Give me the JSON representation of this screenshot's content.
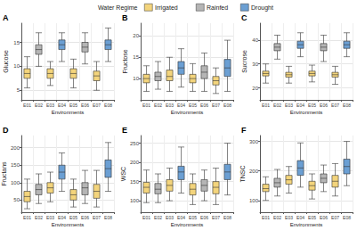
{
  "legend_title": "Water Regime",
  "groups": [
    {
      "name": "Irrigated",
      "color": "#f3d47c"
    },
    {
      "name": "Rainfed",
      "color": "#b5b5b5"
    },
    {
      "name": "Drought",
      "color": "#6b9fd3"
    }
  ],
  "chart_data": [
    {
      "type": "boxplot",
      "title": "A",
      "y_label": "Glucose",
      "x_label": "Environments",
      "grid": true,
      "categories": [
        "E01",
        "E02",
        "E03",
        "E04",
        "E05",
        "E06",
        "E07",
        "E08"
      ],
      "colors": [
        "#f3d47c",
        "#b5b5b5",
        "#f3d47c",
        "#6b9fd3",
        "#f3d47c",
        "#b5b5b5",
        "#f3d47c",
        "#6b9fd3"
      ],
      "values": [
        [
          5.5,
          7.5,
          8.5,
          9.5,
          12
        ],
        [
          10,
          12.5,
          13.5,
          14.5,
          17
        ],
        [
          6,
          7.5,
          8.5,
          9.5,
          11
        ],
        [
          11,
          13.5,
          14.5,
          15.5,
          17
        ],
        [
          5.5,
          7.5,
          8.5,
          9.5,
          11.5
        ],
        [
          10.5,
          13,
          14,
          15,
          17
        ],
        [
          5,
          7,
          8,
          9,
          11
        ],
        [
          11,
          13.5,
          14.5,
          15.5,
          18
        ]
      ],
      "ylim": [
        3,
        19
      ],
      "yticks": [
        5,
        10,
        15
      ]
    },
    {
      "type": "boxplot",
      "title": "B",
      "y_label": "Fructose",
      "x_label": "Environments",
      "grid": true,
      "categories": [
        "E01",
        "E02",
        "E03",
        "E04",
        "E05",
        "E06",
        "E07",
        "E08"
      ],
      "colors": [
        "#f3d47c",
        "#b5b5b5",
        "#f3d47c",
        "#6b9fd3",
        "#f3d47c",
        "#b5b5b5",
        "#f3d47c",
        "#6b9fd3"
      ],
      "values": [
        [
          7,
          9,
          10,
          11,
          13
        ],
        [
          7.5,
          9.5,
          10.5,
          11.5,
          14
        ],
        [
          7,
          9.5,
          10.5,
          12,
          15
        ],
        [
          8,
          11,
          12.5,
          14,
          17
        ],
        [
          7,
          9,
          10,
          11,
          13.5
        ],
        [
          7,
          10,
          11.5,
          13,
          16
        ],
        [
          6.5,
          8.5,
          9.5,
          10.5,
          12.5
        ],
        [
          7,
          10.5,
          12.5,
          14.5,
          19
        ]
      ],
      "ylim": [
        5,
        23
      ],
      "yticks": [
        10,
        15,
        20
      ]
    },
    {
      "type": "boxplot",
      "title": "C",
      "y_label": "Sucrose",
      "x_label": "Environments",
      "grid": true,
      "categories": [
        "E01",
        "E02",
        "E03",
        "E04",
        "E05",
        "E06",
        "E07",
        "E08"
      ],
      "colors": [
        "#f3d47c",
        "#b5b5b5",
        "#f3d47c",
        "#6b9fd3",
        "#f3d47c",
        "#b5b5b5",
        "#f3d47c",
        "#6b9fd3"
      ],
      "values": [
        [
          22,
          25,
          26,
          27,
          30
        ],
        [
          32,
          35.5,
          37,
          38.5,
          42
        ],
        [
          22,
          24.5,
          25.5,
          26.5,
          29
        ],
        [
          33,
          36.5,
          38,
          39.5,
          43
        ],
        [
          22.5,
          25,
          26,
          27,
          29.5
        ],
        [
          31,
          35.5,
          37,
          38.5,
          42
        ],
        [
          21.5,
          24.5,
          25.5,
          26.5,
          29
        ],
        [
          33,
          36.5,
          38,
          39.5,
          43
        ]
      ],
      "ylim": [
        15,
        47
      ],
      "yticks": [
        20,
        30,
        40
      ]
    },
    {
      "type": "boxplot",
      "title": "D",
      "y_label": "Fructans",
      "x_label": "Environments",
      "grid": true,
      "categories": [
        "E01",
        "E02",
        "E03",
        "E04",
        "E05",
        "E06",
        "E07",
        "E08"
      ],
      "colors": [
        "#f3d47c",
        "#b5b5b5",
        "#f3d47c",
        "#6b9fd3",
        "#f3d47c",
        "#b5b5b5",
        "#f3d47c",
        "#6b9fd3"
      ],
      "values": [
        [
          25,
          45,
          60,
          75,
          110
        ],
        [
          40,
          65,
          80,
          95,
          125
        ],
        [
          45,
          70,
          85,
          100,
          130
        ],
        [
          75,
          110,
          130,
          150,
          185
        ],
        [
          30,
          50,
          65,
          80,
          110
        ],
        [
          40,
          65,
          85,
          100,
          135
        ],
        [
          30,
          55,
          75,
          95,
          135
        ],
        [
          75,
          115,
          140,
          165,
          215
        ]
      ],
      "ylim": [
        15,
        235
      ],
      "yticks": [
        50,
        100,
        150,
        200
      ]
    },
    {
      "type": "boxplot",
      "title": "E",
      "y_label": "WSC",
      "x_label": "Environments",
      "grid": true,
      "categories": [
        "E01",
        "E02",
        "E03",
        "E04",
        "E05",
        "E06",
        "E07",
        "E08"
      ],
      "colors": [
        "#f3d47c",
        "#b5b5b5",
        "#f3d47c",
        "#6b9fd3",
        "#f3d47c",
        "#b5b5b5",
        "#f3d47c",
        "#6b9fd3"
      ],
      "values": [
        [
          95,
          120,
          135,
          148,
          180
        ],
        [
          95,
          118,
          130,
          145,
          170
        ],
        [
          100,
          125,
          140,
          155,
          185
        ],
        [
          120,
          155,
          175,
          190,
          240
        ],
        [
          90,
          115,
          130,
          145,
          170
        ],
        [
          100,
          125,
          140,
          155,
          180
        ],
        [
          90,
          118,
          135,
          150,
          185
        ],
        [
          115,
          155,
          175,
          195,
          250
        ]
      ],
      "ylim": [
        70,
        270
      ],
      "yticks": [
        100,
        150,
        200,
        250
      ]
    },
    {
      "type": "boxplot",
      "title": "F",
      "y_label": "TNSC",
      "x_label": "Environments",
      "grid": true,
      "categories": [
        "E01",
        "E02",
        "E03",
        "E04",
        "E05",
        "E06",
        "E07",
        "E08"
      ],
      "colors": [
        "#f3d47c",
        "#b5b5b5",
        "#f3d47c",
        "#6b9fd3",
        "#f3d47c",
        "#b5b5b5",
        "#f3d47c",
        "#6b9fd3"
      ],
      "values": [
        [
          100,
          130,
          140,
          155,
          180
        ],
        [
          115,
          145,
          160,
          175,
          205
        ],
        [
          125,
          155,
          170,
          185,
          215
        ],
        [
          145,
          185,
          210,
          235,
          295
        ],
        [
          105,
          135,
          150,
          165,
          190
        ],
        [
          130,
          160,
          175,
          190,
          220
        ],
        [
          115,
          145,
          165,
          185,
          225
        ],
        [
          150,
          190,
          215,
          240,
          300
        ]
      ],
      "ylim": [
        60,
        320
      ],
      "yticks": [
        100,
        200,
        300
      ]
    }
  ]
}
